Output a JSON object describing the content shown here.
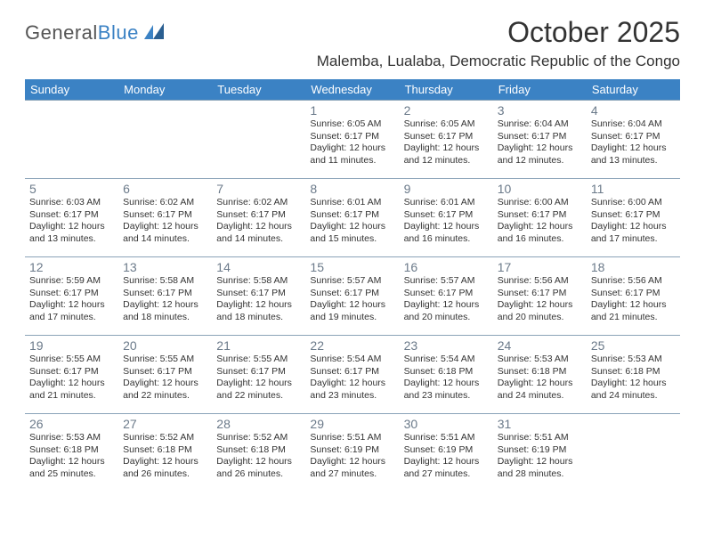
{
  "logo": {
    "text1": "General",
    "text2": "Blue"
  },
  "title": "October 2025",
  "location": "Malemba, Lualaba, Democratic Republic of the Congo",
  "colors": {
    "header_bg": "#3b82c4",
    "header_text": "#ffffff",
    "border": "#8aa3b8",
    "daynum": "#6b7a8a",
    "body_text": "#333333",
    "background": "#ffffff"
  },
  "weekdays": [
    "Sunday",
    "Monday",
    "Tuesday",
    "Wednesday",
    "Thursday",
    "Friday",
    "Saturday"
  ],
  "weeks": [
    [
      null,
      null,
      null,
      {
        "n": "1",
        "sr": "6:05 AM",
        "ss": "6:17 PM",
        "dl": "12 hours and 11 minutes."
      },
      {
        "n": "2",
        "sr": "6:05 AM",
        "ss": "6:17 PM",
        "dl": "12 hours and 12 minutes."
      },
      {
        "n": "3",
        "sr": "6:04 AM",
        "ss": "6:17 PM",
        "dl": "12 hours and 12 minutes."
      },
      {
        "n": "4",
        "sr": "6:04 AM",
        "ss": "6:17 PM",
        "dl": "12 hours and 13 minutes."
      }
    ],
    [
      {
        "n": "5",
        "sr": "6:03 AM",
        "ss": "6:17 PM",
        "dl": "12 hours and 13 minutes."
      },
      {
        "n": "6",
        "sr": "6:02 AM",
        "ss": "6:17 PM",
        "dl": "12 hours and 14 minutes."
      },
      {
        "n": "7",
        "sr": "6:02 AM",
        "ss": "6:17 PM",
        "dl": "12 hours and 14 minutes."
      },
      {
        "n": "8",
        "sr": "6:01 AM",
        "ss": "6:17 PM",
        "dl": "12 hours and 15 minutes."
      },
      {
        "n": "9",
        "sr": "6:01 AM",
        "ss": "6:17 PM",
        "dl": "12 hours and 16 minutes."
      },
      {
        "n": "10",
        "sr": "6:00 AM",
        "ss": "6:17 PM",
        "dl": "12 hours and 16 minutes."
      },
      {
        "n": "11",
        "sr": "6:00 AM",
        "ss": "6:17 PM",
        "dl": "12 hours and 17 minutes."
      }
    ],
    [
      {
        "n": "12",
        "sr": "5:59 AM",
        "ss": "6:17 PM",
        "dl": "12 hours and 17 minutes."
      },
      {
        "n": "13",
        "sr": "5:58 AM",
        "ss": "6:17 PM",
        "dl": "12 hours and 18 minutes."
      },
      {
        "n": "14",
        "sr": "5:58 AM",
        "ss": "6:17 PM",
        "dl": "12 hours and 18 minutes."
      },
      {
        "n": "15",
        "sr": "5:57 AM",
        "ss": "6:17 PM",
        "dl": "12 hours and 19 minutes."
      },
      {
        "n": "16",
        "sr": "5:57 AM",
        "ss": "6:17 PM",
        "dl": "12 hours and 20 minutes."
      },
      {
        "n": "17",
        "sr": "5:56 AM",
        "ss": "6:17 PM",
        "dl": "12 hours and 20 minutes."
      },
      {
        "n": "18",
        "sr": "5:56 AM",
        "ss": "6:17 PM",
        "dl": "12 hours and 21 minutes."
      }
    ],
    [
      {
        "n": "19",
        "sr": "5:55 AM",
        "ss": "6:17 PM",
        "dl": "12 hours and 21 minutes."
      },
      {
        "n": "20",
        "sr": "5:55 AM",
        "ss": "6:17 PM",
        "dl": "12 hours and 22 minutes."
      },
      {
        "n": "21",
        "sr": "5:55 AM",
        "ss": "6:17 PM",
        "dl": "12 hours and 22 minutes."
      },
      {
        "n": "22",
        "sr": "5:54 AM",
        "ss": "6:17 PM",
        "dl": "12 hours and 23 minutes."
      },
      {
        "n": "23",
        "sr": "5:54 AM",
        "ss": "6:18 PM",
        "dl": "12 hours and 23 minutes."
      },
      {
        "n": "24",
        "sr": "5:53 AM",
        "ss": "6:18 PM",
        "dl": "12 hours and 24 minutes."
      },
      {
        "n": "25",
        "sr": "5:53 AM",
        "ss": "6:18 PM",
        "dl": "12 hours and 24 minutes."
      }
    ],
    [
      {
        "n": "26",
        "sr": "5:53 AM",
        "ss": "6:18 PM",
        "dl": "12 hours and 25 minutes."
      },
      {
        "n": "27",
        "sr": "5:52 AM",
        "ss": "6:18 PM",
        "dl": "12 hours and 26 minutes."
      },
      {
        "n": "28",
        "sr": "5:52 AM",
        "ss": "6:18 PM",
        "dl": "12 hours and 26 minutes."
      },
      {
        "n": "29",
        "sr": "5:51 AM",
        "ss": "6:19 PM",
        "dl": "12 hours and 27 minutes."
      },
      {
        "n": "30",
        "sr": "5:51 AM",
        "ss": "6:19 PM",
        "dl": "12 hours and 27 minutes."
      },
      {
        "n": "31",
        "sr": "5:51 AM",
        "ss": "6:19 PM",
        "dl": "12 hours and 28 minutes."
      },
      null
    ]
  ],
  "labels": {
    "sunrise": "Sunrise:",
    "sunset": "Sunset:",
    "daylight": "Daylight:"
  }
}
